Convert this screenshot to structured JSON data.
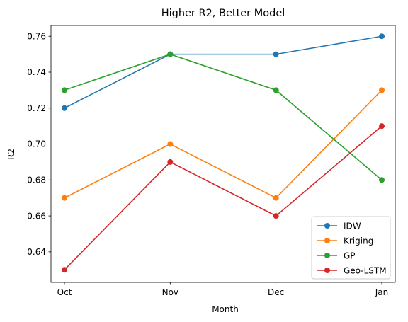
{
  "chart_data": {
    "type": "line",
    "title": "Higher R2, Better Model",
    "xlabel": "Month",
    "ylabel": "R2",
    "categories": [
      "Oct",
      "Nov",
      "Dec",
      "Jan"
    ],
    "ylim": [
      0.623,
      0.766
    ],
    "yticks": [
      "0.64",
      "0.66",
      "0.68",
      "0.70",
      "0.72",
      "0.74",
      "0.76"
    ],
    "grid": false,
    "legend_position": "lower-right",
    "series": [
      {
        "name": "IDW",
        "color": "#1f77b4",
        "values": [
          0.72,
          0.75,
          0.75,
          0.76
        ]
      },
      {
        "name": "Kriging",
        "color": "#ff7f0e",
        "values": [
          0.67,
          0.7,
          0.67,
          0.73
        ]
      },
      {
        "name": "GP",
        "color": "#2ca02c",
        "values": [
          0.73,
          0.75,
          0.73,
          0.68
        ]
      },
      {
        "name": "Geo-LSTM",
        "color": "#d62728",
        "values": [
          0.63,
          0.69,
          0.66,
          0.71
        ]
      }
    ]
  }
}
